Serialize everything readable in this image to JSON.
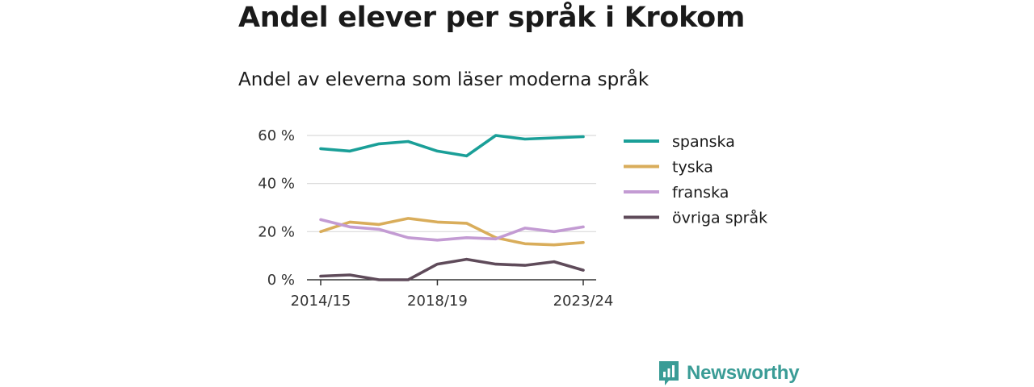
{
  "title": "Andel elever per språk i Krokom",
  "subtitle": "Andel av eleverna som läser moderna språk",
  "brand": {
    "name": "Newsworthy",
    "icon": "bar-chart-speech-bubble-icon",
    "color": "#3a9c96"
  },
  "chart_data": {
    "type": "line",
    "x": [
      "2014/15",
      "2015/16",
      "2016/17",
      "2017/18",
      "2018/19",
      "2019/20",
      "2020/21",
      "2021/22",
      "2022/23",
      "2023/24"
    ],
    "x_tick_labels": [
      "2014/15",
      "2018/19",
      "2023/24"
    ],
    "y_ticks": [
      0,
      20,
      40,
      60
    ],
    "y_tick_labels": [
      "0 %",
      "20 %",
      "40 %",
      "60 %"
    ],
    "ylim": [
      0,
      60
    ],
    "grid": true,
    "legend": "right",
    "series": [
      {
        "name": "spanska",
        "color": "#1a9f98",
        "values": [
          54.5,
          53.5,
          56.5,
          57.5,
          53.5,
          51.5,
          60.0,
          58.5,
          59.0,
          59.5
        ]
      },
      {
        "name": "tyska",
        "color": "#d9ad5b",
        "values": [
          20.0,
          24.0,
          23.0,
          25.5,
          24.0,
          23.5,
          17.5,
          15.0,
          14.5,
          15.5
        ]
      },
      {
        "name": "franska",
        "color": "#c39bd3",
        "values": [
          25.0,
          22.0,
          21.0,
          17.5,
          16.5,
          17.5,
          17.0,
          21.5,
          20.0,
          22.0
        ]
      },
      {
        "name": "övriga språk",
        "color": "#5f4b5a",
        "values": [
          1.5,
          2.0,
          0.0,
          0.0,
          6.5,
          8.5,
          6.5,
          6.0,
          7.5,
          4.0
        ]
      }
    ]
  }
}
